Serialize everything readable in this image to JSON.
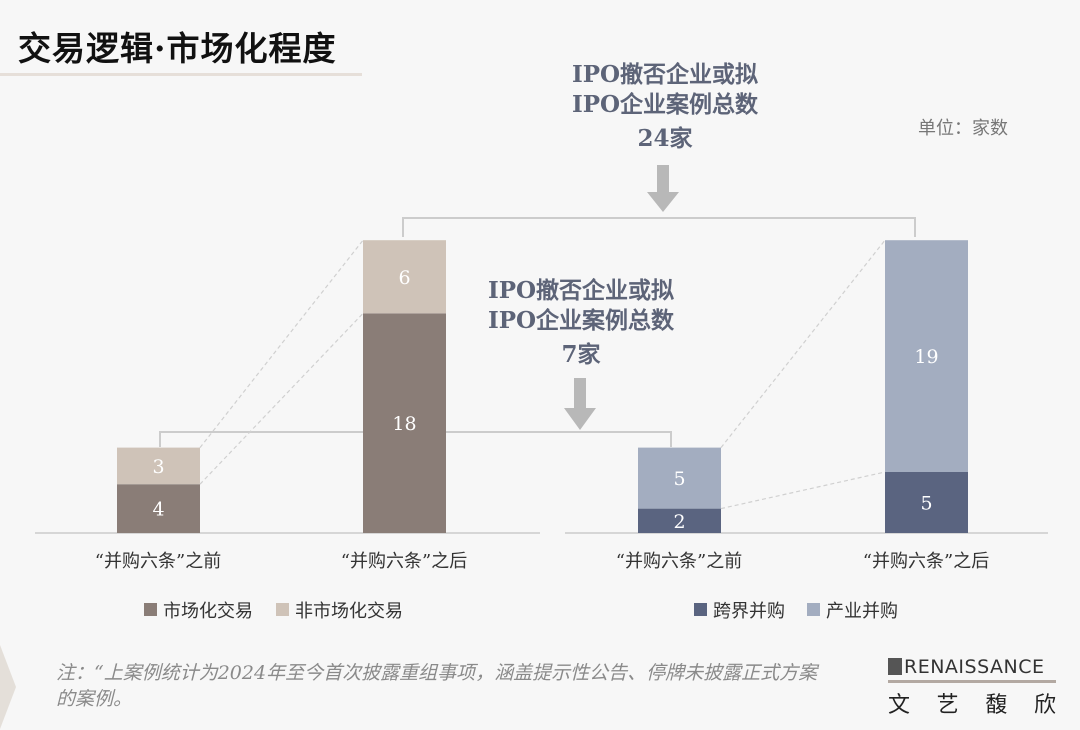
{
  "title": "交易逻辑·市场化程度",
  "unit": "单位：家数",
  "annotations": {
    "top": {
      "line1": "IPO撤否企业或拟",
      "line2": "IPO企业案例总数",
      "total": "24家"
    },
    "middle": {
      "line1": "IPO撤否企业或拟",
      "line2": "IPO企业案例总数",
      "total": "7家"
    }
  },
  "note": "注：“上案例统计为2024年至今首次披露重组事项，涵盖提示性公告、停牌未披露正式方案的案例。",
  "logo": {
    "en": "RENAISSANCE",
    "cn": [
      "文",
      "艺",
      "馥",
      "欣"
    ]
  },
  "chart_data": [
    {
      "type": "bar",
      "stacked": true,
      "categories": [
        "“并购六条”之前",
        "“并购六条”之后"
      ],
      "series": [
        {
          "name": "市场化交易",
          "values": [
            4,
            18
          ],
          "color": "#8a7d77"
        },
        {
          "name": "非市场化交易",
          "values": [
            3,
            6
          ],
          "color": "#cfc3b8"
        }
      ],
      "legend": "bottom"
    },
    {
      "type": "bar",
      "stacked": true,
      "categories": [
        "“并购六条”之前",
        "“并购六条”之后"
      ],
      "series": [
        {
          "name": "跨界并购",
          "values": [
            2,
            5
          ],
          "color": "#5a6480"
        },
        {
          "name": "产业并购",
          "values": [
            5,
            19
          ],
          "color": "#a3adc0"
        }
      ],
      "legend": "bottom"
    }
  ]
}
